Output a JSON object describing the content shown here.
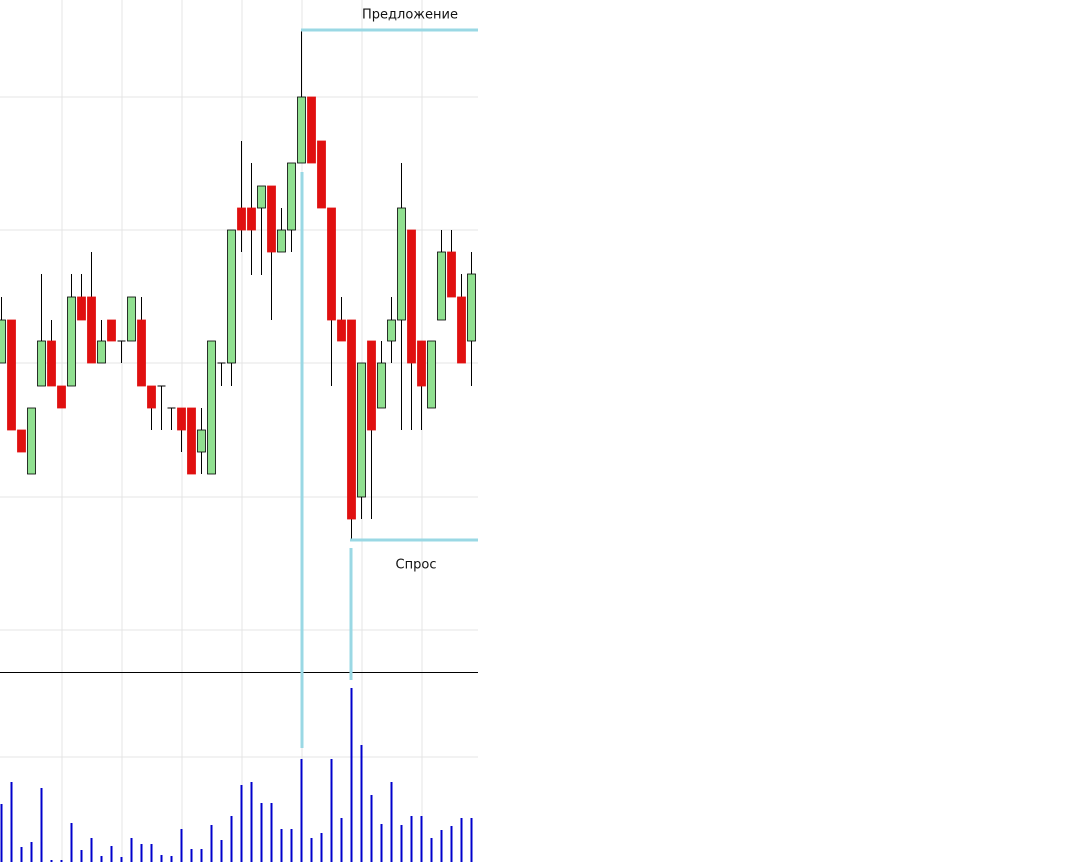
{
  "chart_data": [
    {
      "type": "candlestick",
      "up_color": "#90e090",
      "down_color": "#e01010",
      "open": [
        309,
        352,
        242,
        198,
        286,
        331,
        286,
        286,
        375,
        375,
        309,
        352,
        331,
        331,
        352,
        286,
        286,
        264,
        264,
        264,
        220,
        198,
        309,
        309,
        464,
        464,
        464,
        486,
        420,
        442,
        509,
        575,
        531,
        464,
        352,
        352,
        175,
        331,
        264,
        331,
        352,
        442,
        331,
        264,
        352,
        420,
        375,
        331
      ],
      "high": [
        375,
        352,
        242,
        264,
        398,
        352,
        286,
        398,
        398,
        420,
        352,
        352,
        331,
        375,
        375,
        286,
        286,
        264,
        264,
        264,
        264,
        331,
        309,
        442,
        531,
        509,
        486,
        486,
        464,
        509,
        642,
        575,
        531,
        464,
        375,
        352,
        309,
        331,
        331,
        375,
        509,
        442,
        331,
        331,
        442,
        442,
        398,
        420
      ],
      "low": [
        309,
        242,
        220,
        198,
        286,
        286,
        264,
        286,
        352,
        309,
        309,
        331,
        309,
        331,
        286,
        242,
        242,
        242,
        220,
        198,
        198,
        198,
        286,
        286,
        420,
        397,
        397,
        352,
        420,
        420,
        509,
        509,
        464,
        286,
        331,
        132,
        153,
        153,
        264,
        309,
        242,
        242,
        242,
        264,
        352,
        375,
        309,
        286
      ],
      "close": [
        352,
        242,
        220,
        264,
        331,
        286,
        264,
        375,
        352,
        309,
        331,
        331,
        331,
        375,
        286,
        264,
        286,
        264,
        242,
        198,
        242,
        331,
        309,
        442,
        442,
        442,
        486,
        420,
        442,
        509,
        575,
        509,
        464,
        352,
        331,
        153,
        309,
        242,
        309,
        352,
        464,
        309,
        286,
        331,
        420,
        375,
        309,
        398
      ],
      "ylim": [
        0,
        672
      ],
      "yticks": [
        575,
        442,
        309,
        175,
        42
      ],
      "grid": true,
      "annotations": [
        "Предложение",
        "Спрос"
      ]
    },
    {
      "type": "bar",
      "color": "#0000cc",
      "values": [
        58,
        80,
        15,
        20,
        74,
        2,
        2,
        39,
        12,
        24,
        6,
        16,
        5,
        24,
        18,
        18,
        7,
        6,
        33,
        13,
        13,
        37,
        22,
        46,
        77,
        80,
        59,
        59,
        33,
        33,
        103,
        24,
        29,
        103,
        44,
        174,
        117,
        67,
        38,
        80,
        37,
        46,
        46,
        24,
        32,
        36,
        44,
        44
      ],
      "ylim": [
        0,
        190
      ],
      "yticks": [
        105
      ],
      "grid": true
    }
  ]
}
